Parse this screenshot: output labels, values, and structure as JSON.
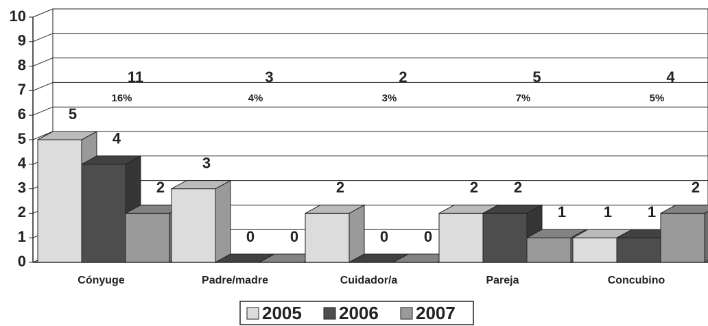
{
  "chart_data": {
    "type": "bar3d",
    "categories": [
      "Cónyuge",
      "Padre/madre",
      "Cuidador/a",
      "Pareja",
      "Concubino"
    ],
    "series": [
      {
        "name": "2005",
        "color": "#dcdcdc",
        "values": [
          5,
          3,
          2,
          2,
          1
        ]
      },
      {
        "name": "2006",
        "color": "#4d4d4d",
        "values": [
          4,
          0,
          0,
          2,
          1
        ]
      },
      {
        "name": "2007",
        "color": "#9a9a9a",
        "values": [
          2,
          0,
          0,
          1,
          2
        ]
      }
    ],
    "totals": [
      11,
      3,
      2,
      5,
      4
    ],
    "share_labels": [
      "16%",
      "4%",
      "3%",
      "7%",
      "5%"
    ],
    "ylim": [
      0,
      10
    ],
    "yticks": [
      0,
      1,
      2,
      3,
      4,
      5,
      6,
      7,
      8,
      9,
      10
    ],
    "grid": true,
    "legend": "bottom"
  }
}
